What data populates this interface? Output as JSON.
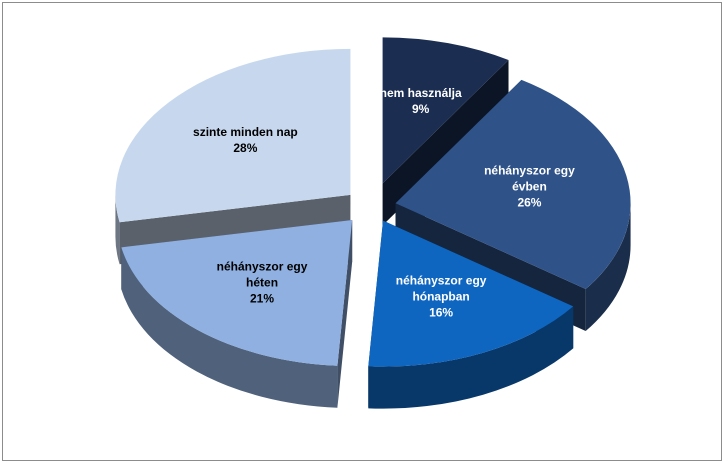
{
  "chart_data": {
    "type": "pie",
    "style": "3d-exploded",
    "title": "",
    "slices": [
      {
        "label": [
          "nem használja"
        ],
        "value": 9,
        "display": "9%",
        "color": "#1b2e52",
        "text_color": "#ffffff"
      },
      {
        "label": [
          "néhányszor egy",
          "évben"
        ],
        "value": 26,
        "display": "26%",
        "color": "#2f5389",
        "text_color": "#ffffff"
      },
      {
        "label": [
          "néhányszor egy",
          "hónapban"
        ],
        "value": 16,
        "display": "16%",
        "color": "#0f66c0",
        "text_color": "#ffffff"
      },
      {
        "label": [
          "néhányszor egy",
          "héten"
        ],
        "value": 21,
        "display": "21%",
        "color": "#8fb0e0",
        "text_color": "#000000"
      },
      {
        "label": [
          "szinte minden nap"
        ],
        "value": 28,
        "display": "28%",
        "color": "#c7d8ee",
        "text_color": "#000000"
      }
    ]
  }
}
